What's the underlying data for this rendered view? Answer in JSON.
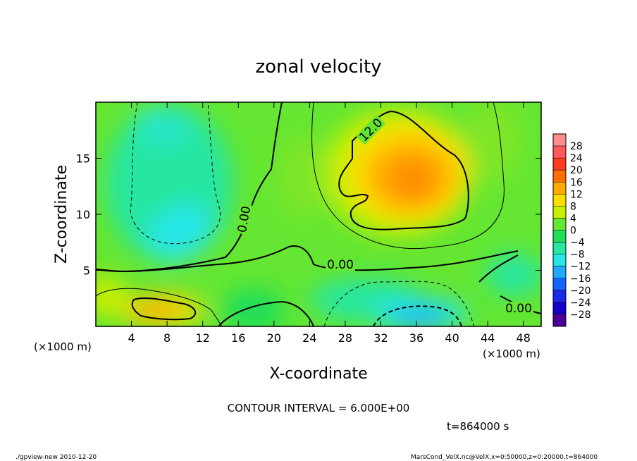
{
  "chart_data": {
    "type": "heatmap",
    "title": "zonal velocity",
    "xlabel": "X-coordinate",
    "ylabel": "Z-coordinate",
    "x_unit": "(×1000 m)",
    "y_unit": "(×1000 m)",
    "xlim": [
      0,
      50
    ],
    "ylim": [
      0,
      20
    ],
    "xticks": [
      4,
      8,
      12,
      16,
      20,
      24,
      28,
      32,
      36,
      40,
      44,
      48
    ],
    "yticks": [
      5,
      10,
      15
    ],
    "colorbar": {
      "labels": [
        "28",
        "24",
        "20",
        "16",
        "12",
        "8",
        "4",
        "0",
        "−4",
        "−8",
        "−12",
        "−16",
        "−20",
        "−24",
        "−28"
      ],
      "colors": [
        "#ff8c8c",
        "#ff5a5a",
        "#ff3c1e",
        "#ff6e00",
        "#ffaa00",
        "#ffdc00",
        "#c8f000",
        "#64e632",
        "#1ede5a",
        "#28e6a0",
        "#28e6e6",
        "#1eaaff",
        "#1464ff",
        "#1e28e6",
        "#1400c8",
        "#4b0096"
      ]
    },
    "features": [
      {
        "kind": "max",
        "x": 34.5,
        "z": 13,
        "value": 16
      },
      {
        "kind": "max",
        "x": 8,
        "z": 1.5,
        "value": 11
      },
      {
        "kind": "min",
        "x": 10,
        "z": 8.5,
        "value": -11
      },
      {
        "kind": "min",
        "x": 36,
        "z": 1,
        "value": -15
      },
      {
        "kind": "min",
        "x": 30,
        "z": 2.5,
        "value": -8
      }
    ],
    "contour_labels": [
      {
        "text": "12.0",
        "x": 30.8,
        "z": 16.8,
        "angle": -45
      },
      {
        "text": "0.00",
        "x": 15.8,
        "z": 9.3,
        "angle": -80
      },
      {
        "text": "0.00",
        "x": 28,
        "z": 5.5,
        "angle": 0
      },
      {
        "text": "0.00",
        "x": 47.2,
        "z": 1.6,
        "angle": 0
      }
    ],
    "contour_interval": "CONTOUR INTERVAL = 6.000E+00",
    "time": "t=864000 s"
  },
  "footer": {
    "left": "./gpview-new  2010-12-20",
    "right": "MarsCond_VelX.nc@VelX,x=0:50000,z=0:20000,t=864000"
  }
}
